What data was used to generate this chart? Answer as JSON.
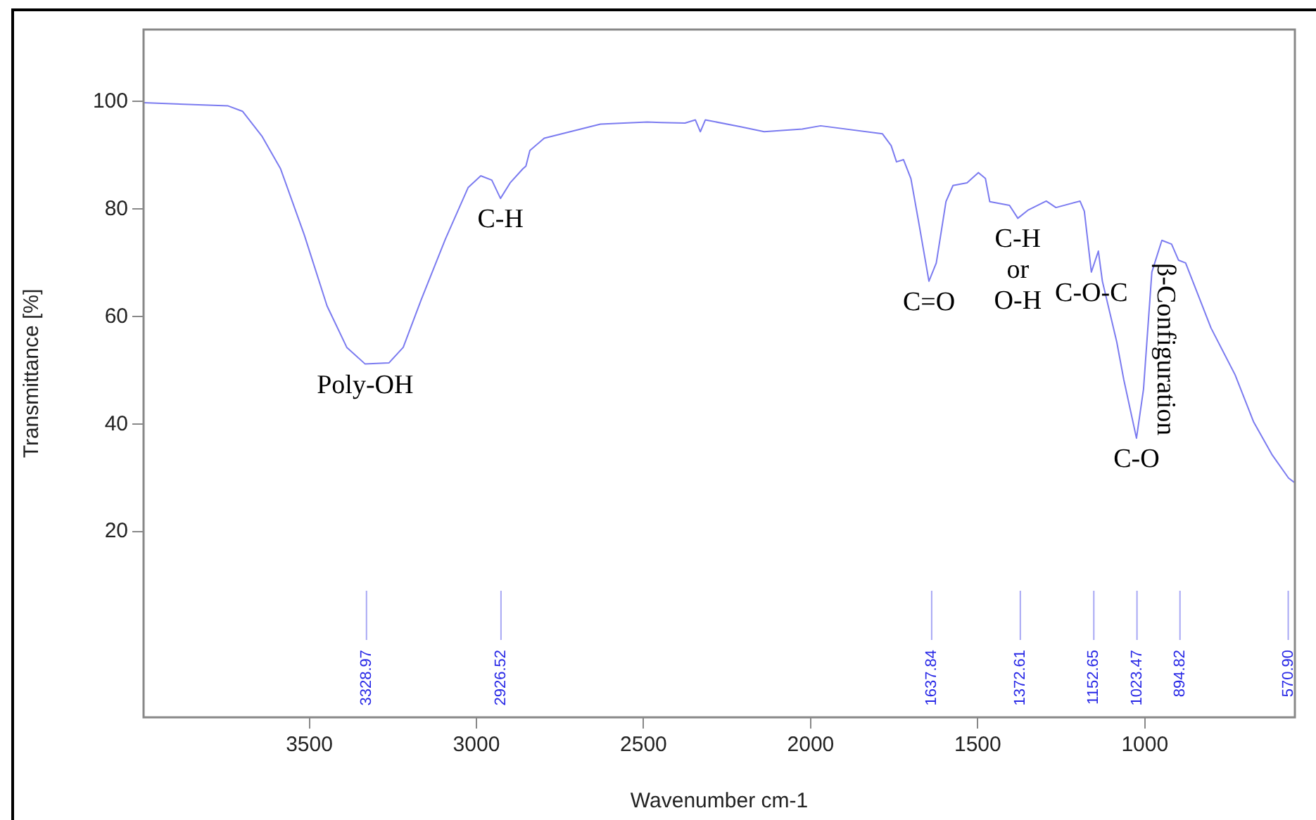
{
  "chart_data": {
    "type": "line",
    "xlabel": "Wavenumber cm-1",
    "ylabel": "Transmittance [%]",
    "xlim": [
      3996,
      551
    ],
    "xticks": [
      3500,
      3000,
      2500,
      2000,
      1500,
      1000
    ],
    "ylim": [
      -14.5,
      113.4
    ],
    "yticks": [
      20,
      40,
      60,
      80,
      100
    ],
    "grid": false,
    "legend": false,
    "marker": "none",
    "line_style": "solid",
    "series": [
      {
        "color": "#7b7bf0",
        "x": [
          3996,
          3743,
          3700,
          3641,
          3586,
          3515,
          3447,
          3388,
          3333,
          3262,
          3219,
          3165,
          3093,
          3025,
          2987,
          2954,
          2928,
          2899,
          2861,
          2852,
          2840,
          2797,
          2629,
          2489,
          2447,
          2376,
          2345,
          2330,
          2315,
          2207,
          2139,
          2025,
          1970,
          1785,
          1759,
          1743,
          1722,
          1700,
          1675,
          1646,
          1624,
          1595,
          1574,
          1532,
          1498,
          1477,
          1464,
          1405,
          1380,
          1350,
          1295,
          1266,
          1194,
          1181,
          1160,
          1139,
          1127,
          1084,
          1063,
          1025,
          1004,
          979,
          949,
          920,
          899,
          878,
          802,
          730,
          675,
          620,
          570,
          553
        ],
        "values": [
          99.8,
          99.2,
          98.2,
          93.5,
          87.5,
          75.2,
          62,
          54.3,
          51.2,
          51.4,
          54.3,
          63.2,
          74.4,
          84,
          86.2,
          85.4,
          82,
          84.9,
          87.5,
          88,
          90.9,
          93.2,
          95.8,
          96.2,
          96.1,
          96,
          96.6,
          94.4,
          96.6,
          95.3,
          94.4,
          94.9,
          95.5,
          94,
          91.8,
          88.8,
          89.2,
          85.7,
          77,
          66.6,
          70,
          81.4,
          84.4,
          84.9,
          86.8,
          85.7,
          81.4,
          80.7,
          78.3,
          79.8,
          81.5,
          80.3,
          81.5,
          79.6,
          68.3,
          72.2,
          66.6,
          55.3,
          48.3,
          37.4,
          46.5,
          68.3,
          74.2,
          73.5,
          70.5,
          70,
          57.9,
          49.2,
          40.5,
          34.4,
          30,
          29.2
        ]
      }
    ],
    "ref_lines": [
      {
        "axis": "x",
        "value": 3328.97,
        "label": "3328.97",
        "color": "#a8a8f4"
      },
      {
        "axis": "x",
        "value": 2926.52,
        "label": "2926.52",
        "color": "#a8a8f4"
      },
      {
        "axis": "x",
        "value": 1637.84,
        "label": "1637.84",
        "color": "#a8a8f4"
      },
      {
        "axis": "x",
        "value": 1372.61,
        "label": "1372.61",
        "color": "#a8a8f4"
      },
      {
        "axis": "x",
        "value": 1152.65,
        "label": "1152.65",
        "color": "#a8a8f4"
      },
      {
        "axis": "x",
        "value": 1023.47,
        "label": "1023.47",
        "color": "#a8a8f4"
      },
      {
        "axis": "x",
        "value": 894.82,
        "label": "894.82",
        "color": "#a8a8f4"
      },
      {
        "axis": "x",
        "value": 570.9,
        "label": "570.90",
        "color": "#a8a8f4"
      }
    ],
    "annotations": [
      {
        "text": "Poly-OH",
        "x": 3333,
        "y": 51.2
      },
      {
        "text": "C-H",
        "x": 2928,
        "y": 82
      },
      {
        "text": "C=O",
        "x": 1646,
        "y": 66.6
      },
      {
        "text": "C-H\nor\nO-H",
        "x": 1380,
        "y": 78.3
      },
      {
        "text": "C-O-C",
        "x": 1160,
        "y": 68.3
      },
      {
        "text": "C-O",
        "x": 1025,
        "y": 37.4
      },
      {
        "text": "β-Configuration",
        "x": 899,
        "y": 70.5
      }
    ]
  }
}
